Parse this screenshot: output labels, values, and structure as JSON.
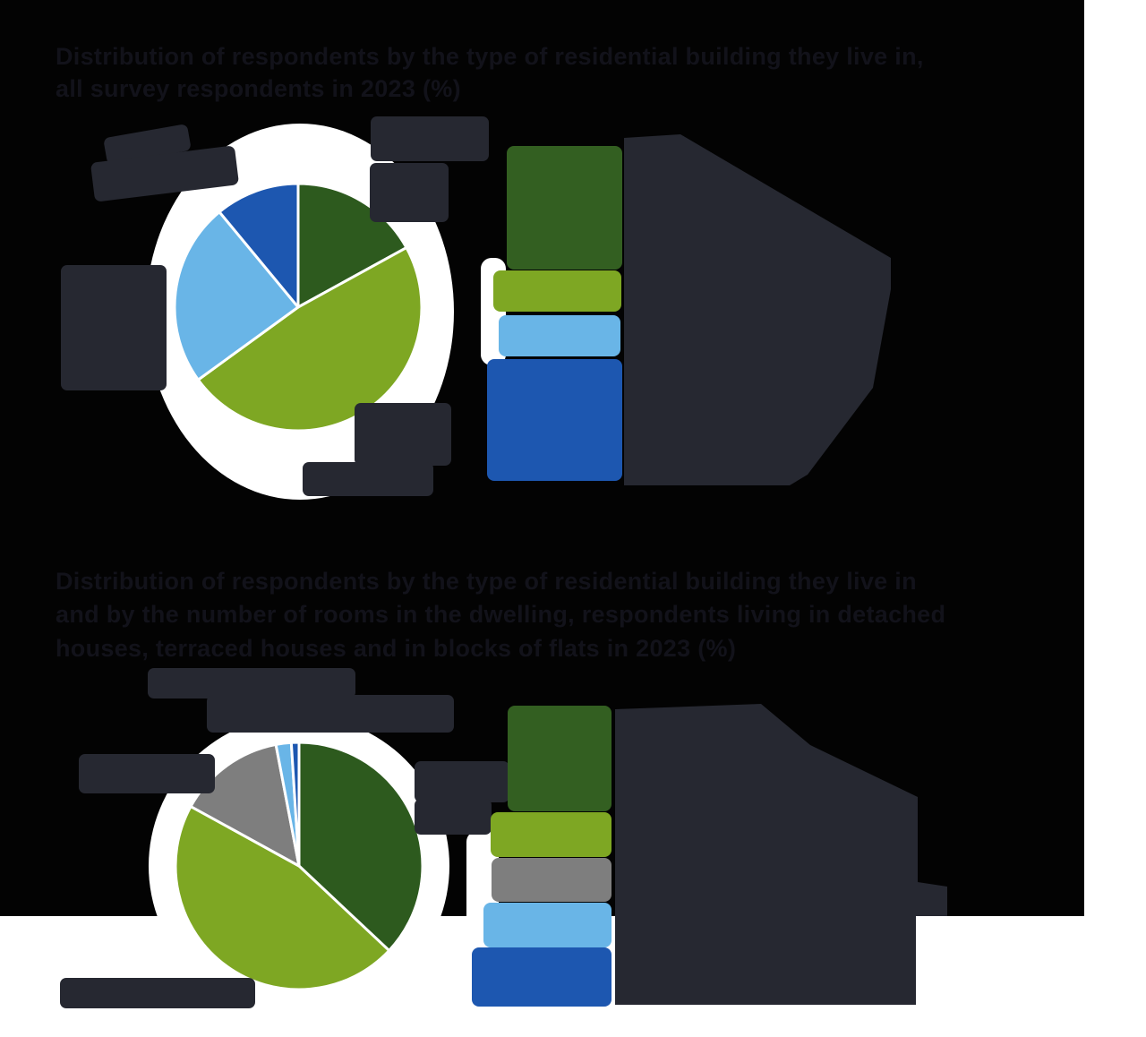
{
  "page": {
    "background_color": "#ffffff",
    "figure_background_color": "#030303",
    "text_blob_color": "#262831",
    "note": "All text in the source image is illegible (rendered as solid blobs); titles are approximate placeholders sized to the visible text extents."
  },
  "palette": {
    "dark_green": "#2d5a1e",
    "olive_green": "#7ea723",
    "light_blue": "#69b5e7",
    "dark_blue": "#1d57b0",
    "gray": "#7e7e7e",
    "white": "#ffffff"
  },
  "chart1": {
    "title_line1": "Distribution of respondents by the type of residential building they live in,",
    "title_line2": "all survey respondents in 2023 (%)",
    "chart_data": {
      "type": "pie",
      "start_angle_deg": 0,
      "direction": "clockwise-from-12",
      "labels": [
        "dark-green segment",
        "olive-green segment",
        "light-blue segment",
        "dark-blue segment"
      ],
      "values": [
        17,
        48,
        24,
        11
      ],
      "colors": [
        "#2d5a1e",
        "#7ea723",
        "#69b5e7",
        "#1d57b0"
      ],
      "slice_border_color": "#ffffff",
      "legend_position": "right",
      "outer_labels": true
    },
    "legend_entries": [
      {
        "color": "#335f21",
        "value": 17
      },
      {
        "color": "#7ea723",
        "value": 48
      },
      {
        "color": "#69b5e7",
        "value": 24
      },
      {
        "color": "#1d57b0",
        "value": 11
      }
    ]
  },
  "chart2": {
    "title_line1": "Distribution of respondents by the type of residential building they live in",
    "title_line2": "and by the number of rooms in the dwelling, respondents living in detached",
    "title_line3": "houses, terraced houses and in blocks of flats in 2023 (%)",
    "chart_data": {
      "type": "pie",
      "start_angle_deg": 0,
      "direction": "clockwise-from-12",
      "labels": [
        "dark-green segment",
        "olive-green segment",
        "gray segment",
        "light-blue segment",
        "dark-blue segment"
      ],
      "values": [
        37,
        46,
        14,
        2,
        1
      ],
      "colors": [
        "#2d5a1e",
        "#7ea723",
        "#7e7e7e",
        "#69b5e7",
        "#1d57b0"
      ],
      "slice_border_color": "#ffffff",
      "legend_position": "right",
      "outer_labels": true
    },
    "legend_entries": [
      {
        "color": "#335f21",
        "value": 37
      },
      {
        "color": "#7ea723",
        "value": 46
      },
      {
        "color": "#7e7e7e",
        "value": 14
      },
      {
        "color": "#69b5e7",
        "value": 2
      },
      {
        "color": "#1d57b0",
        "value": 1
      }
    ]
  }
}
